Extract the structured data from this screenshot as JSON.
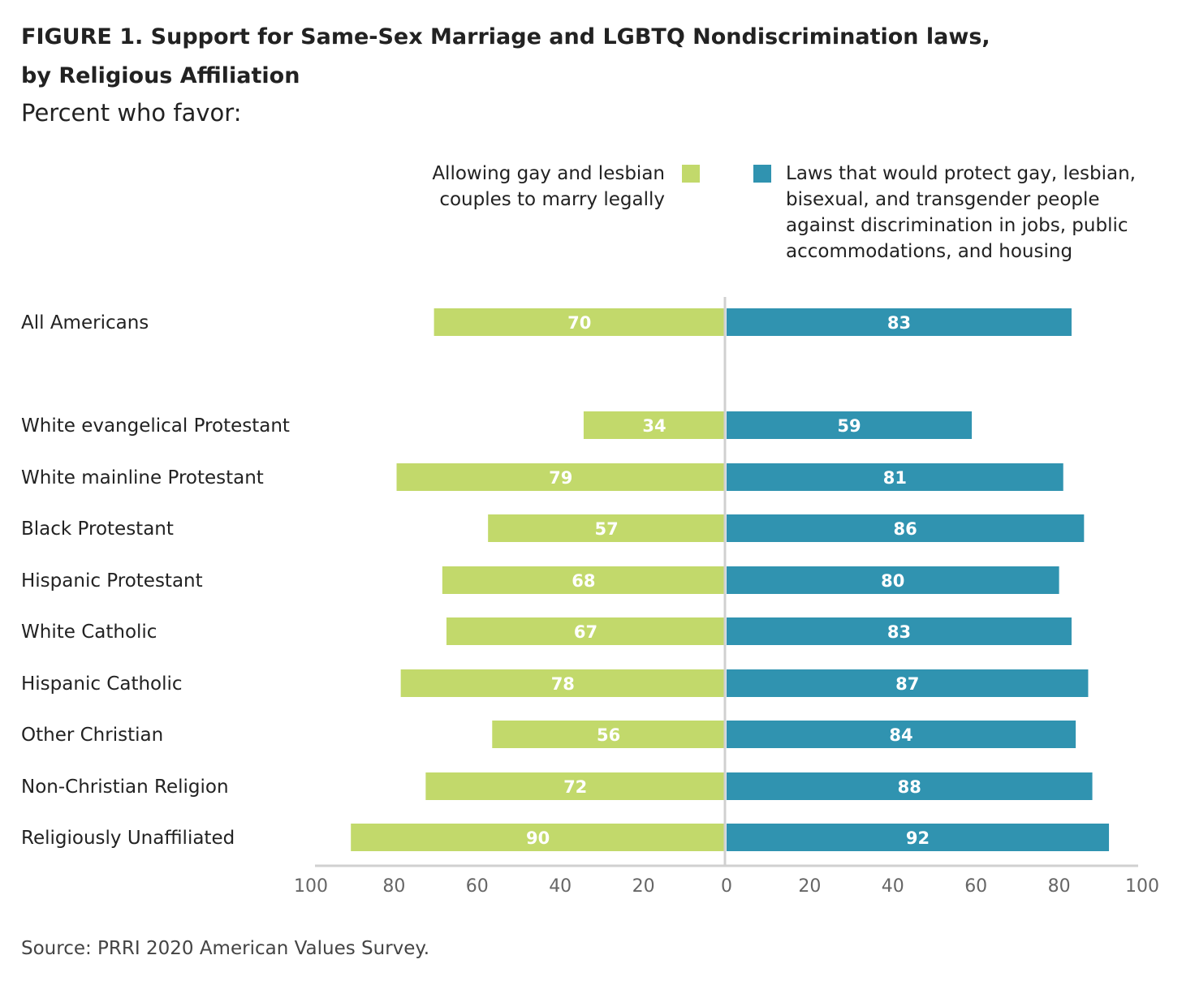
{
  "title_line1": "FIGURE 1.  Support for Same-Sex Marriage and LGBTQ Nondiscrimination laws,",
  "title_line2": "by Religious Affiliation",
  "subtitle": "Percent who favor:",
  "legend": {
    "marriage": "Allowing gay and lesbian couples to marry legally",
    "nondiscrimination": "Laws that would protect gay, lesbian, bisexual, and transgender people against discrimination in jobs, public accommodations, and housing"
  },
  "source": "Source: PRRI 2020 American Values Survey.",
  "colors": {
    "marriage": "#c2d96b",
    "nondiscrimination": "#3093b0",
    "axis": "#d0d0d0"
  },
  "chart_data": {
    "type": "bar",
    "orientation": "horizontal-diverging",
    "title": "FIGURE 1.  Support for Same-Sex Marriage and LGBTQ Nondiscrimination laws, by Religious Affiliation",
    "subtitle": "Percent who favor:",
    "categories": [
      "All Americans",
      "White evangelical Protestant",
      "White mainline Protestant",
      "Black Protestant",
      "Hispanic Protestant",
      "White Catholic",
      "Hispanic Catholic",
      "Other Christian",
      "Non-Christian Religion",
      "Religiously Unaffiliated"
    ],
    "series": [
      {
        "name": "Allowing gay and lesbian couples to marry legally",
        "side": "left",
        "values": [
          70,
          34,
          79,
          57,
          68,
          67,
          78,
          56,
          72,
          90
        ]
      },
      {
        "name": "Laws that would protect gay, lesbian, bisexual, and transgender people against discrimination in jobs, public accommodations, and housing",
        "side": "right",
        "values": [
          83,
          59,
          81,
          86,
          80,
          83,
          87,
          84,
          88,
          92
        ]
      }
    ],
    "x_ticks_left": [
      "100",
      "80",
      "60",
      "40",
      "20"
    ],
    "x_ticks_right": [
      "0",
      "20",
      "40",
      "60",
      "80",
      "100"
    ],
    "xlim": [
      -100,
      100
    ],
    "grid": false,
    "legend_position": "top"
  }
}
